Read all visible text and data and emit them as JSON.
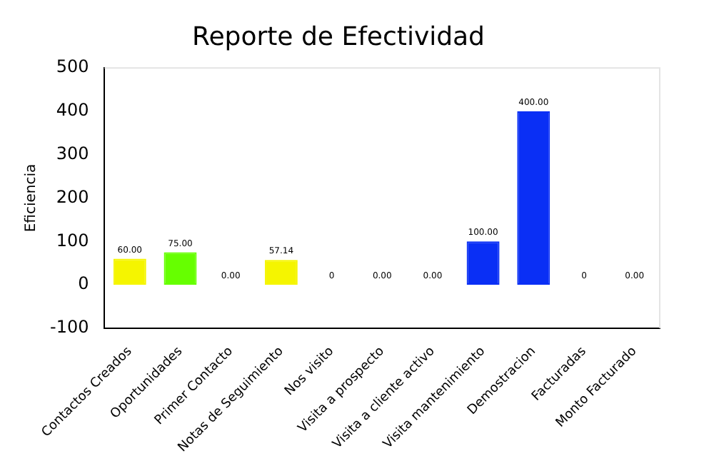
{
  "chart_data": {
    "type": "bar",
    "title": "Reporte de Efectividad",
    "ylabel": "Eficiencia",
    "categories": [
      "Contactos Creados",
      "Oportunidades",
      "Primer Contacto",
      "Notas de Seguimiento",
      "Nos visito",
      "Visita a prospecto",
      "Visita a cliente activo",
      "Visita mantenimiento",
      "Demostracion",
      "Facturadas",
      "Monto Facturado"
    ],
    "values": [
      60,
      75,
      0,
      57.14,
      0,
      0,
      0,
      100,
      400,
      0,
      0
    ],
    "value_labels": [
      "60.00",
      "75.00",
      "0.00",
      "57.14",
      "0",
      "0.00",
      "0.00",
      "100.00",
      "400.00",
      "0",
      "0.00"
    ],
    "colors": [
      "#f5f500",
      "#66ff00",
      "#ff6666",
      "#f5f500",
      "#ff6666",
      "#ff6666",
      "#ff6666",
      "#0a2ff5",
      "#0a2ff5",
      "#ff6666",
      "#ff6666"
    ],
    "ylim": [
      -100,
      500
    ],
    "yticks": [
      -100,
      0,
      100,
      200,
      300,
      400,
      500
    ],
    "grid": false,
    "legend": false
  }
}
